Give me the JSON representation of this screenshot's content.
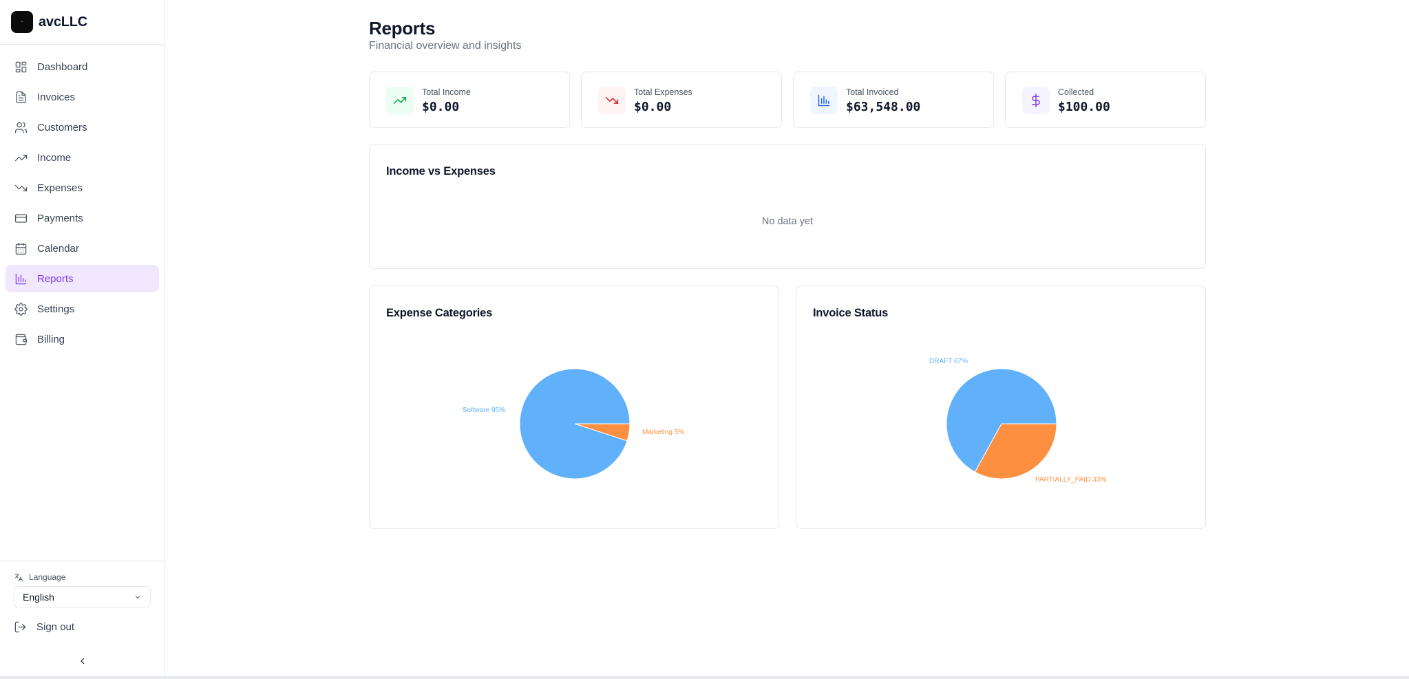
{
  "brand": {
    "name": "avcLLC"
  },
  "sidebar": {
    "items": [
      {
        "label": "Dashboard",
        "icon": "dashboard-icon"
      },
      {
        "label": "Invoices",
        "icon": "file-text-icon"
      },
      {
        "label": "Customers",
        "icon": "users-icon"
      },
      {
        "label": "Income",
        "icon": "trending-up-icon"
      },
      {
        "label": "Expenses",
        "icon": "trending-down-icon"
      },
      {
        "label": "Payments",
        "icon": "credit-card-icon"
      },
      {
        "label": "Calendar",
        "icon": "calendar-icon"
      },
      {
        "label": "Reports",
        "icon": "bar-chart-icon",
        "active": true
      },
      {
        "label": "Settings",
        "icon": "gear-icon"
      },
      {
        "label": "Billing",
        "icon": "wallet-icon"
      }
    ],
    "language_label": "Language",
    "language_value": "English",
    "signout_label": "Sign out"
  },
  "header": {
    "title": "Reports",
    "subtitle": "Financial overview and insights"
  },
  "stats": [
    {
      "label": "Total Income",
      "value": "$0.00",
      "icon": "trending-up-icon",
      "color": "#16a34a",
      "bg": "#ecfdf3"
    },
    {
      "label": "Total Expenses",
      "value": "$0.00",
      "icon": "trending-down-icon",
      "color": "#dc2626",
      "bg": "#fef2f2"
    },
    {
      "label": "Total Invoiced",
      "value": "$63,548.00",
      "icon": "bar-chart-icon",
      "color": "#2563eb",
      "bg": "#eff6ff"
    },
    {
      "label": "Collected",
      "value": "$100.00",
      "icon": "dollar-icon",
      "color": "#7c3aed",
      "bg": "#f5f3ff"
    }
  ],
  "income_vs_expenses": {
    "title": "Income vs Expenses",
    "empty_text": "No data yet"
  },
  "colors": {
    "accent": "#7c3aed",
    "series_blue": "#60b0fa",
    "series_orange": "#fd9040"
  },
  "chart_data": [
    {
      "type": "pie",
      "title": "Expense Categories",
      "slices": [
        {
          "name": "Software",
          "value": 95,
          "label": "Software 95%",
          "color": "#60b0fa"
        },
        {
          "name": "Marketing",
          "value": 5,
          "label": "Marketing 5%",
          "color": "#fd9040"
        }
      ]
    },
    {
      "type": "pie",
      "title": "Invoice Status",
      "slices": [
        {
          "name": "DRAFT",
          "value": 67,
          "label": "DRAFT 67%",
          "color": "#60b0fa"
        },
        {
          "name": "PARTIALLY_PAID",
          "value": 33,
          "label": "PARTIALLY_PAID 33%",
          "color": "#fd9040"
        }
      ]
    }
  ]
}
